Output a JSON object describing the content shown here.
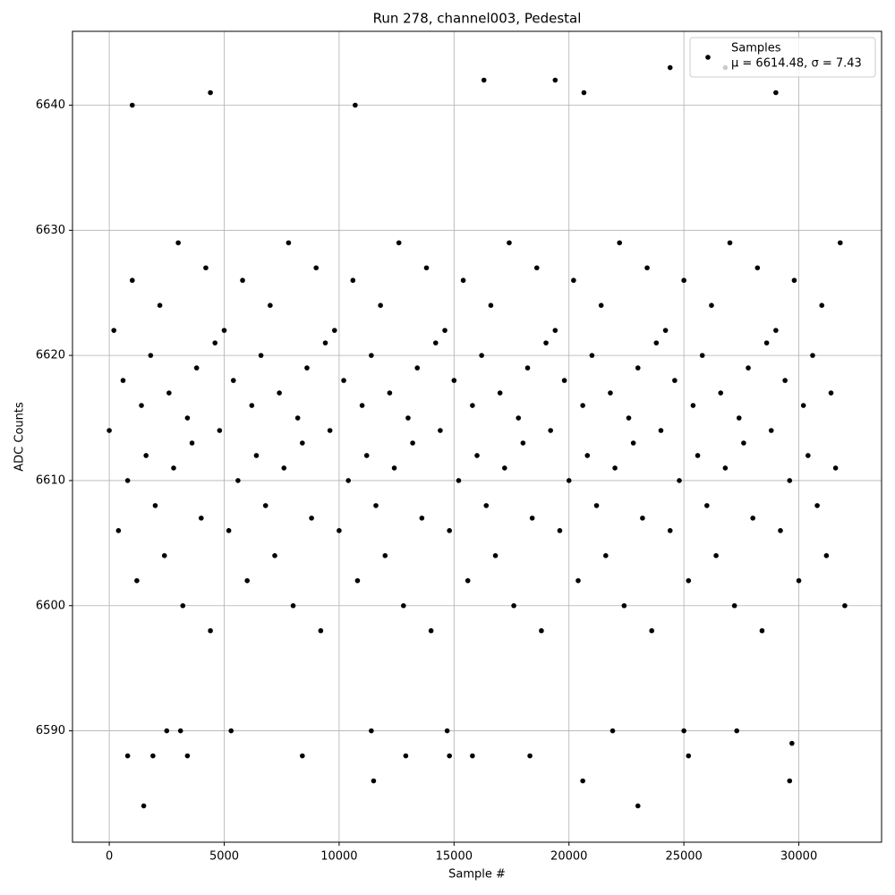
{
  "chart_data": {
    "type": "scatter",
    "title": "Run 278, channel003, Pedestal",
    "x_label": "Sample #",
    "y_label": "ADC Counts",
    "legend_note": "μ = 6614.48, σ = 7.43",
    "legend_position": "upper right",
    "grid": true,
    "xlim": [
      -1600,
      33600
    ],
    "ylim": [
      6581.1,
      6645.9
    ],
    "xticks": [
      0,
      5000,
      10000,
      15000,
      20000,
      25000,
      30000
    ],
    "yticks": [
      6590,
      6600,
      6610,
      6620,
      6630,
      6640
    ],
    "series": [
      {
        "name": "Samples",
        "color": "#000000",
        "x": [
          0,
          200,
          400,
          600,
          800,
          1000,
          1200,
          1400,
          1600,
          1800,
          2000,
          2200,
          2400,
          2600,
          2800,
          3000,
          3200,
          3400,
          3600,
          3800,
          4000,
          4200,
          4400,
          4600,
          4800,
          5000,
          5200,
          5400,
          5600,
          5800,
          6000,
          6200,
          6400,
          6600,
          6800,
          7000,
          7200,
          7400,
          7600,
          7800,
          8000,
          8200,
          8400,
          8600,
          8800,
          9000,
          9200,
          9400,
          9600,
          9800,
          10000,
          10200,
          10400,
          10600,
          10800,
          11000,
          11200,
          11400,
          11600,
          11800,
          12000,
          12200,
          12400,
          12600,
          12800,
          13000,
          13200,
          13400,
          13600,
          13800,
          14000,
          14200,
          14400,
          14600,
          14800,
          15000,
          15200,
          15400,
          15600,
          15800,
          16000,
          16200,
          16400,
          16600,
          16800,
          17000,
          17200,
          17400,
          17600,
          17800,
          18000,
          18200,
          18400,
          18600,
          18800,
          19000,
          19200,
          19400,
          19600,
          19800,
          20000,
          20200,
          20400,
          20600,
          20800,
          21000,
          21200,
          21400,
          21600,
          21800,
          22000,
          22200,
          22400,
          22600,
          22800,
          23000,
          23200,
          23400,
          23600,
          23800,
          24000,
          24200,
          24400,
          24600,
          24800,
          25000,
          25200,
          25400,
          25600,
          25800,
          26000,
          26200,
          26400,
          26600,
          26800,
          27000,
          27200,
          27400,
          27600,
          27800,
          28000,
          28200,
          28400,
          28600,
          28800,
          29000,
          29200,
          29400,
          29600,
          29800,
          30000,
          30200,
          30400,
          30600,
          30800,
          31000,
          31200,
          31400,
          31600,
          31800,
          32000,
          1500,
          23000,
          11500,
          20600,
          29600,
          29700,
          800,
          1900,
          3400,
          8400,
          12900,
          14800,
          15800,
          18300,
          25200,
          4400,
          1000,
          10700,
          16300,
          19400,
          24400,
          26800,
          20650,
          29000,
          2500,
          5300,
          11400,
          21900,
          25000,
          27300,
          14700,
          3100
        ],
        "y": [
          6614,
          6622,
          6606,
          6618,
          6610,
          6626,
          6602,
          6616,
          6612,
          6620,
          6608,
          6624,
          6604,
          6617,
          6611,
          6629,
          6600,
          6615,
          6613,
          6619,
          6607,
          6627,
          6598,
          6621,
          6614,
          6622,
          6606,
          6618,
          6610,
          6626,
          6602,
          6616,
          6612,
          6620,
          6608,
          6624,
          6604,
          6617,
          6611,
          6629,
          6600,
          6615,
          6613,
          6619,
          6607,
          6627,
          6598,
          6621,
          6614,
          6622,
          6606,
          6618,
          6610,
          6626,
          6602,
          6616,
          6612,
          6620,
          6608,
          6624,
          6604,
          6617,
          6611,
          6629,
          6600,
          6615,
          6613,
          6619,
          6607,
          6627,
          6598,
          6621,
          6614,
          6622,
          6606,
          6618,
          6610,
          6626,
          6602,
          6616,
          6612,
          6620,
          6608,
          6624,
          6604,
          6617,
          6611,
          6629,
          6600,
          6615,
          6613,
          6619,
          6607,
          6627,
          6598,
          6621,
          6614,
          6622,
          6606,
          6618,
          6610,
          6626,
          6602,
          6616,
          6612,
          6620,
          6608,
          6624,
          6604,
          6617,
          6611,
          6629,
          6600,
          6615,
          6613,
          6619,
          6607,
          6627,
          6598,
          6621,
          6614,
          6622,
          6606,
          6618,
          6610,
          6626,
          6602,
          6616,
          6612,
          6620,
          6608,
          6624,
          6604,
          6617,
          6611,
          6629,
          6600,
          6615,
          6613,
          6619,
          6607,
          6627,
          6598,
          6621,
          6614,
          6622,
          6606,
          6618,
          6610,
          6626,
          6602,
          6616,
          6612,
          6620,
          6608,
          6624,
          6604,
          6617,
          6611,
          6629,
          6600,
          6584,
          6584,
          6586,
          6586,
          6586,
          6589,
          6588,
          6588,
          6588,
          6588,
          6588,
          6588,
          6588,
          6588,
          6588,
          6641,
          6640,
          6640,
          6642,
          6642,
          6643,
          6643,
          6641,
          6641,
          6590,
          6590,
          6590,
          6590,
          6590,
          6590,
          6590,
          6590
        ]
      }
    ]
  }
}
